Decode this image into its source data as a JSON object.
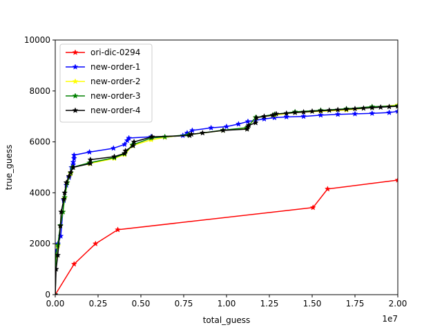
{
  "chart_data": {
    "type": "line",
    "title": "",
    "xlabel": "total_guess",
    "ylabel": "true_guess",
    "x_offset_text": "1e7",
    "x_scale": 10000000,
    "xlim": [
      0,
      20000000
    ],
    "ylim": [
      0,
      10000
    ],
    "x_ticks": [
      0,
      2500000,
      5000000,
      7500000,
      10000000,
      12500000,
      15000000,
      17500000,
      20000000
    ],
    "x_tick_labels": [
      "0.00",
      "0.25",
      "0.50",
      "0.75",
      "1.00",
      "1.25",
      "1.50",
      "1.75",
      "2.00"
    ],
    "y_ticks": [
      0,
      2000,
      4000,
      6000,
      8000,
      10000
    ],
    "y_tick_labels": [
      "0",
      "2000",
      "4000",
      "6000",
      "8000",
      "10000"
    ],
    "grid": false,
    "legend_position": "upper-left",
    "marker": "star",
    "series": [
      {
        "name": "ori-dic-0294",
        "color": "#ff0000",
        "x": [
          0,
          1100000,
          2350000,
          3650000,
          15050000,
          15900000,
          20000000
        ],
        "y": [
          0,
          1200,
          2000,
          2550,
          3420,
          4150,
          4500
        ]
      },
      {
        "name": "new-order-1",
        "color": "#0000ff",
        "x": [
          0,
          50000,
          150000,
          320000,
          500000,
          650000,
          800000,
          950000,
          1050000,
          1050000,
          1100000,
          1100000,
          2000000,
          3400000,
          4050000,
          4200000,
          4300000,
          5600000,
          6400000,
          7450000,
          7700000,
          8000000,
          9100000,
          10000000,
          10700000,
          11250000,
          11700000,
          12200000,
          12800000,
          13500000,
          14500000,
          15500000,
          16500000,
          17500000,
          18500000,
          19500000,
          20000000
        ],
        "y": [
          0,
          1700,
          2000,
          2300,
          3700,
          4300,
          4600,
          5000,
          5100,
          5200,
          5350,
          5480,
          5600,
          5750,
          5900,
          6050,
          6150,
          6200,
          6180,
          6250,
          6350,
          6450,
          6550,
          6600,
          6700,
          6800,
          6850,
          6900,
          6950,
          6980,
          7000,
          7050,
          7080,
          7100,
          7120,
          7150,
          7200
        ]
      },
      {
        "name": "new-order-2",
        "color": "#ffff00",
        "x": [
          0,
          50000,
          150000,
          300000,
          450000,
          550000,
          700000,
          900000,
          1000000,
          2000000,
          3450000,
          4050000,
          4500000,
          5600000,
          6400000,
          7800000,
          9800000,
          11200000,
          11700000,
          12800000,
          14000000,
          15500000,
          17000000,
          18500000,
          20000000
        ],
        "y": [
          0,
          1500,
          1900,
          2700,
          3250,
          3800,
          4400,
          4750,
          5000,
          5150,
          5350,
          5500,
          5850,
          6080,
          6180,
          6280,
          6450,
          6550,
          6950,
          7050,
          7150,
          7200,
          7250,
          7350,
          7450
        ]
      },
      {
        "name": "new-order-3",
        "color": "#008000",
        "x": [
          0,
          50000,
          150000,
          300000,
          450000,
          550000,
          700000,
          900000,
          1000000,
          2000000,
          3450000,
          4050000,
          4500000,
          5600000,
          6400000,
          7800000,
          9800000,
          11200000,
          11700000,
          12800000,
          14000000,
          15500000,
          17000000,
          18500000,
          20000000
        ],
        "y": [
          0,
          1550,
          1950,
          2720,
          3250,
          3820,
          4400,
          4780,
          5000,
          5180,
          5380,
          5530,
          5880,
          6150,
          6200,
          6280,
          6460,
          6560,
          6960,
          7080,
          7180,
          7240,
          7300,
          7380,
          7420
        ]
      },
      {
        "name": "new-order-4",
        "color": "#000000",
        "x": [
          0,
          50000,
          150000,
          300000,
          350000,
          500000,
          550000,
          650000,
          800000,
          900000,
          1050000,
          2050000,
          2050000,
          3450000,
          4050000,
          4100000,
          4550000,
          4600000,
          5650000,
          7850000,
          7950000,
          8600000,
          9800000,
          11200000,
          11250000,
          11300000,
          11700000,
          11750000,
          12200000,
          12700000,
          12900000,
          13500000,
          14000000,
          14500000,
          15000000,
          15500000,
          16000000,
          16500000,
          17000000,
          17500000,
          18000000,
          18500000,
          19000000,
          19500000,
          20000000
        ],
        "y": [
          0,
          1000,
          1550,
          2700,
          3250,
          3750,
          4000,
          4400,
          4650,
          4800,
          5000,
          5150,
          5300,
          5420,
          5550,
          5650,
          5850,
          6000,
          6200,
          6250,
          6300,
          6350,
          6450,
          6500,
          6600,
          6650,
          6750,
          6950,
          7000,
          7050,
          7100,
          7120,
          7150,
          7170,
          7200,
          7220,
          7240,
          7260,
          7280,
          7300,
          7320,
          7340,
          7360,
          7380,
          7400
        ]
      }
    ]
  }
}
